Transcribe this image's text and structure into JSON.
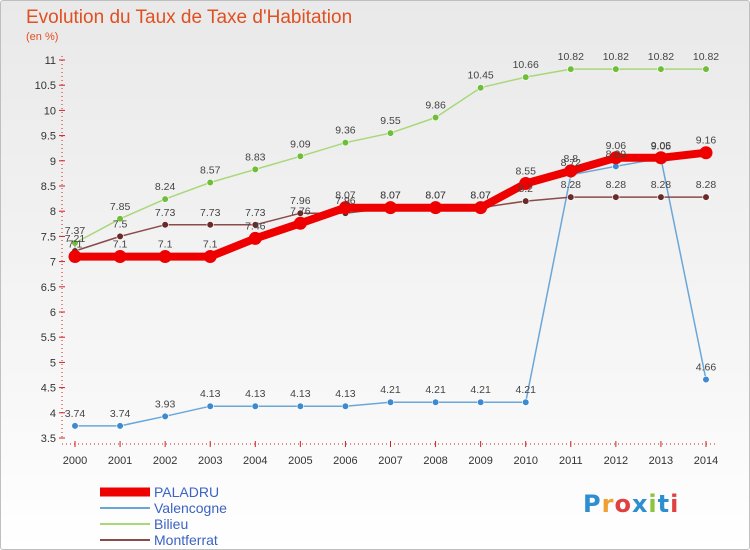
{
  "chart_data": {
    "type": "line",
    "title": "Evolution du Taux de Taxe d'Habitation",
    "subtitle": "(en %)",
    "x": [
      "2000",
      "2001",
      "2002",
      "2003",
      "2004",
      "2005",
      "2006",
      "2007",
      "2008",
      "2009",
      "2010",
      "2011",
      "2012",
      "2013",
      "2014"
    ],
    "y_ticks": [
      "3.5",
      "4",
      "4.5",
      "5",
      "5.5",
      "6",
      "6.5",
      "7",
      "7.5",
      "8",
      "8.5",
      "9",
      "9.5",
      "10",
      "10.5",
      "11"
    ],
    "ylim": [
      3.5,
      11
    ],
    "grid": false,
    "legend_position": "bottom-left",
    "series": [
      {
        "name": "Valencogne",
        "color": "#5b9fd4",
        "stroke": "#6aa7d8",
        "dot": "#3d8ad0",
        "width": 1.5,
        "values": [
          3.74,
          3.74,
          3.93,
          4.13,
          4.13,
          4.13,
          4.13,
          4.21,
          4.21,
          4.21,
          4.21,
          8.72,
          8.89,
          9.05,
          4.66
        ]
      },
      {
        "name": "Bilieu",
        "color": "#9acd60",
        "stroke": "#a8d878",
        "dot": "#6fbe3a",
        "width": 1.5,
        "values": [
          7.37,
          7.85,
          8.24,
          8.57,
          8.83,
          9.09,
          9.36,
          9.55,
          9.86,
          10.45,
          10.66,
          10.82,
          10.82,
          10.82,
          10.82
        ]
      },
      {
        "name": "Montferrat",
        "color": "#7a3a3a",
        "stroke": "#8a4a4a",
        "dot": "#6a2a2a",
        "width": 1.5,
        "values": [
          7.21,
          7.5,
          7.73,
          7.73,
          7.73,
          7.96,
          7.96,
          8.07,
          8.07,
          8.07,
          8.2,
          8.28,
          8.28,
          8.28,
          8.28
        ]
      },
      {
        "name": "PALADRU",
        "color": "#ee0000",
        "stroke": "#ee0000",
        "dot": "#ee0000",
        "width": 8,
        "values": [
          7.1,
          7.1,
          7.1,
          7.1,
          7.46,
          7.76,
          8.07,
          8.07,
          8.07,
          8.07,
          8.55,
          8.8,
          9.06,
          9.06,
          9.16
        ]
      }
    ],
    "data_labels": [
      {
        "series": "Valencogne",
        "text": [
          "3.74",
          "3.74",
          "3.93",
          "4.13",
          "4.13",
          "4.13",
          "4.13",
          "4.21",
          "4.21",
          "4.21",
          "4.21",
          "8.72",
          "8.89",
          "9.05",
          "4.66"
        ]
      },
      {
        "series": "Bilieu",
        "text": [
          "7.37",
          "7.85",
          "8.24",
          "8.57",
          "8.83",
          "9.09",
          "9.36",
          "9.55",
          "9.86",
          "10.45",
          "10.66",
          "10.82",
          "10.82",
          "10.82",
          "10.82"
        ]
      },
      {
        "series": "Montferrat",
        "text": [
          "7.21",
          "7.5",
          "7.73",
          "7.73",
          "7.73",
          "7.96",
          "7.96",
          "8.07",
          "8.07",
          "8.07",
          "8.2",
          "8.28",
          "8.28",
          "8.28",
          "8.28"
        ]
      },
      {
        "series": "PALADRU",
        "text": [
          "7.1",
          "7.1",
          "7.1",
          "7.1",
          "7.46",
          "7.76",
          "8.07",
          "8.07",
          "8.07",
          "8.07",
          "8.55",
          "8.8",
          "9.06",
          "9.06",
          "9.16"
        ]
      }
    ],
    "legend": [
      {
        "name": "PALADRU",
        "color": "#ee0000",
        "text_color": "#3b63c4",
        "thick": true
      },
      {
        "name": "Valencogne",
        "color": "#6aa7d8",
        "text_color": "#3b63c4",
        "thick": false
      },
      {
        "name": "Bilieu",
        "color": "#a8d878",
        "text_color": "#3b63c4",
        "thick": false
      },
      {
        "name": "Montferrat",
        "color": "#8a4a4a",
        "text_color": "#3b63c4",
        "thick": false
      }
    ]
  },
  "logo": {
    "text": "Proxiti",
    "colors": [
      "#2e8fd0",
      "#f0a030",
      "#e04040",
      "#2e8fd0",
      "#8cc43c",
      "#2e8fd0",
      "#e04040"
    ]
  }
}
